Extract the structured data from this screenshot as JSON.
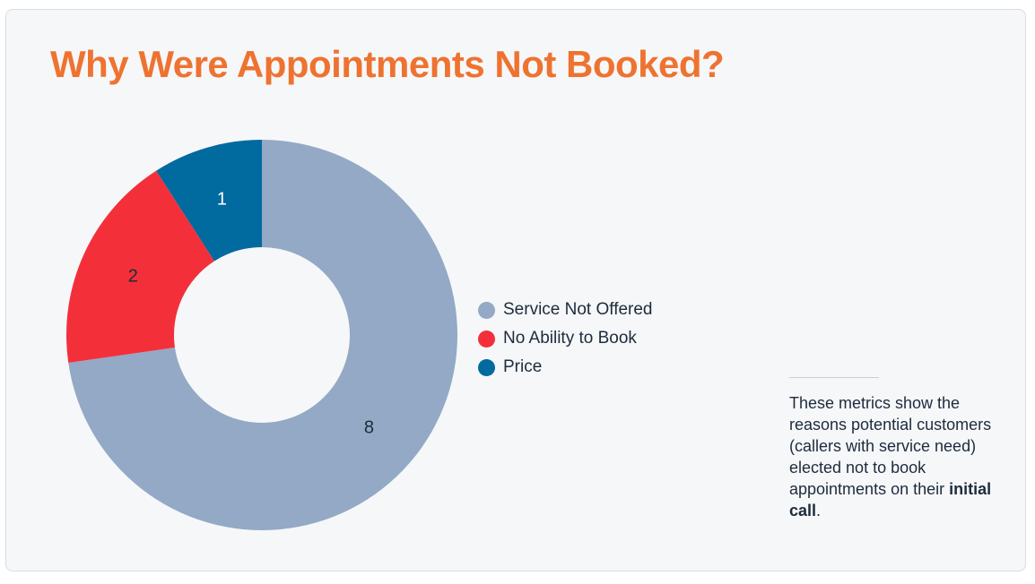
{
  "chart_data": {
    "type": "pie",
    "donut": true,
    "title": "Why Were Appointments Not Booked?",
    "categories": [
      "Service Not Offered",
      "No Ability to Book",
      "Price"
    ],
    "values": [
      8,
      2,
      1
    ],
    "colors": [
      "#93a9c5",
      "#f3303a",
      "#016a9e"
    ],
    "label_colors": [
      "#1d2b3c",
      "#1d2b3c",
      "#ffffff"
    ],
    "legend_position": "right"
  },
  "note": {
    "before": "These metrics show the reasons potential customers (callers with service need) elected not to book appointments on their ",
    "emphasis": "initial call",
    "after": "."
  }
}
